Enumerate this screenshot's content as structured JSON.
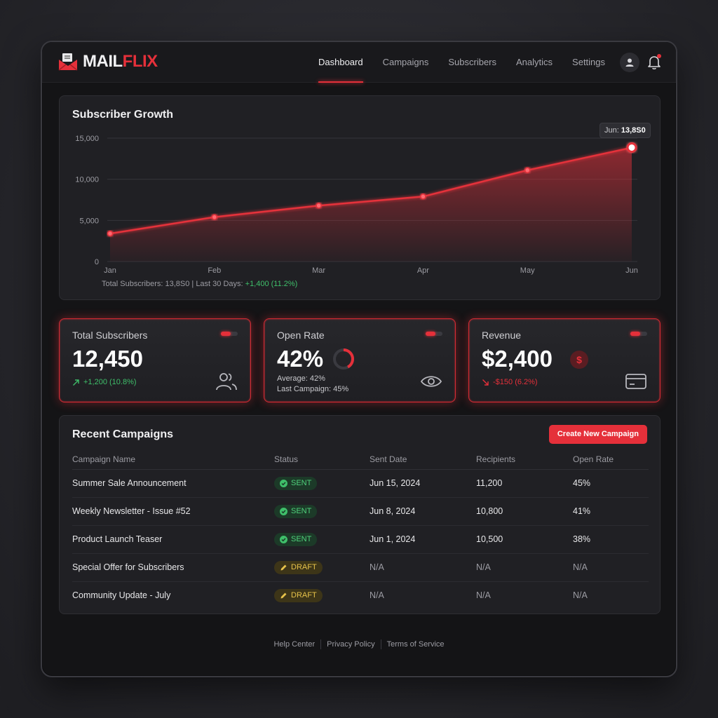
{
  "app": {
    "logo_mail": "MAIL",
    "logo_flix": "FLIX",
    "accent": "#e5303a"
  },
  "nav": {
    "items": [
      "Dashboard",
      "Campaigns",
      "Subscribers",
      "Analytics",
      "Settings"
    ],
    "active": "Dashboard"
  },
  "chart": {
    "title": "Subscriber Growth",
    "tooltip_label": "Jun:",
    "tooltip_value": "13,8S0",
    "footer_total": "Total Subscribers: 13,8S0 | Last 30 Days:",
    "footer_delta": "+1,400 (11.2%)"
  },
  "chart_data": {
    "type": "area",
    "title": "Subscriber Growth",
    "categories": [
      "Jan",
      "Feb",
      "Mar",
      "Apr",
      "May",
      "Jun"
    ],
    "values": [
      3400,
      5400,
      6800,
      7900,
      11100,
      13850
    ],
    "ylim": [
      0,
      15000
    ],
    "yticks": [
      "0",
      "5,000",
      "10,000",
      "15,000"
    ],
    "grid": true,
    "color": "#e5303a"
  },
  "cards": {
    "subscribers": {
      "label": "Total Subscribers",
      "value": "12,450",
      "delta": "+1,200 (10.8%)"
    },
    "open_rate": {
      "label": "Open Rate",
      "value": "42%",
      "average": "Average: 42%",
      "last": "Last Campaign: 45%",
      "ring_fraction": 0.42
    },
    "revenue": {
      "label": "Revenue",
      "value": "$2,400",
      "delta": "-$150 (6.2%)",
      "currency_symbol": "$"
    }
  },
  "campaigns": {
    "title": "Recent Campaigns",
    "create_label": "Create New Campaign",
    "columns": [
      "Campaign Name",
      "Status",
      "Sent Date",
      "Recipients",
      "Open Rate"
    ],
    "rows": [
      {
        "name": "Summer Sale Announcement",
        "status": "SENT",
        "date": "Jun 15, 2024",
        "recipients": "11,200",
        "open": "45%"
      },
      {
        "name": "Weekly Newsletter - Issue #52",
        "status": "SENT",
        "date": "Jun 8, 2024",
        "recipients": "10,800",
        "open": "41%"
      },
      {
        "name": "Product Launch Teaser",
        "status": "SENT",
        "date": "Jun 1, 2024",
        "recipients": "10,500",
        "open": "38%"
      },
      {
        "name": "Special Offer for Subscribers",
        "status": "DRAFT",
        "date": "N/A",
        "recipients": "N/A",
        "open": "N/A"
      },
      {
        "name": "Community Update - July",
        "status": "DRAFT",
        "date": "N/A",
        "recipients": "N/A",
        "open": "N/A"
      }
    ]
  },
  "footer": {
    "links": [
      "Help Center",
      "Privacy Policy",
      "Terms of Service"
    ]
  }
}
